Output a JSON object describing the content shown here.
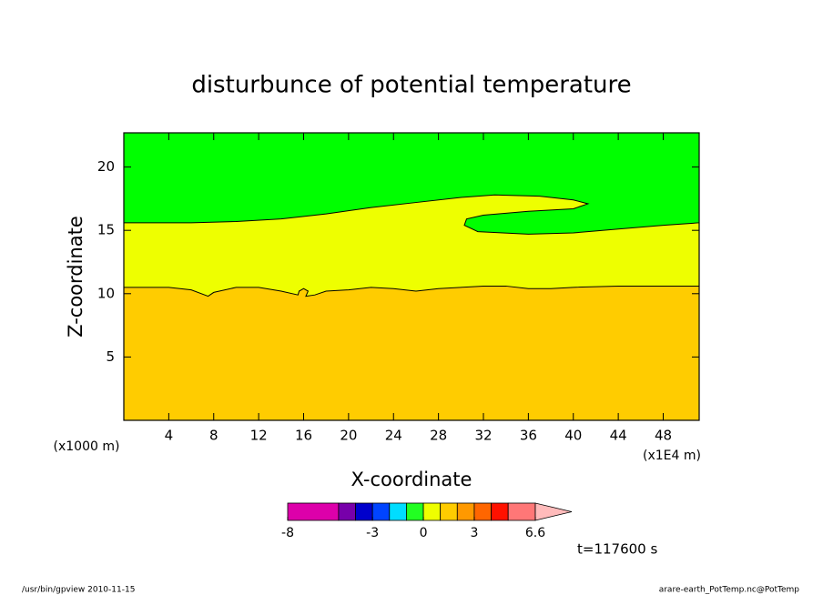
{
  "chart_data": {
    "type": "contour",
    "title": "disturbunce of potential temperature",
    "x_label": "X-coordinate",
    "y_label": "Z-coordinate",
    "x_unit_label": "(x1E4 m)",
    "y_unit_label": "(x1000 m)",
    "xlim": [
      0,
      51.2
    ],
    "ylim": [
      0,
      22.7
    ],
    "xticks": [
      4,
      8,
      12,
      16,
      20,
      24,
      28,
      32,
      36,
      40,
      44,
      48
    ],
    "yticks": [
      5,
      10,
      15,
      20
    ],
    "regions": [
      {
        "color": "#eeff00",
        "x": [
          0,
          51.2,
          51.2,
          0
        ],
        "y": [
          0,
          0,
          22.7,
          22.7
        ]
      },
      {
        "color": "#ffcc00",
        "x": [
          0,
          0,
          4,
          6,
          7.5,
          8,
          10,
          12,
          14,
          15.5,
          15.6,
          16,
          16.4,
          16.2,
          17,
          18,
          20,
          22,
          24,
          26,
          28,
          30,
          32,
          34,
          36,
          38,
          40,
          44,
          48,
          51.2,
          51.2
        ],
        "y": [
          0,
          10.5,
          10.5,
          10.3,
          9.8,
          10.1,
          10.5,
          10.5,
          10.2,
          9.9,
          10.2,
          10.4,
          10.2,
          9.8,
          9.9,
          10.2,
          10.3,
          10.5,
          10.4,
          10.2,
          10.4,
          10.5,
          10.6,
          10.6,
          10.4,
          10.4,
          10.5,
          10.6,
          10.6,
          10.6,
          0
        ]
      },
      {
        "color": "#00ff00",
        "x": [
          0,
          0,
          6,
          10,
          14,
          18,
          22,
          26,
          30,
          33,
          37,
          40,
          41.3,
          40,
          36,
          32,
          30.5,
          30.3,
          31.5,
          36,
          40,
          44,
          48,
          51.2,
          51.2
        ],
        "y": [
          22.7,
          15.6,
          15.6,
          15.7,
          15.9,
          16.3,
          16.8,
          17.2,
          17.6,
          17.8,
          17.7,
          17.4,
          17.1,
          16.7,
          16.5,
          16.2,
          15.9,
          15.4,
          14.9,
          14.7,
          14.8,
          15.1,
          15.4,
          15.6,
          22.7
        ]
      }
    ],
    "colorbar": {
      "levels": [
        -8,
        -5,
        -4,
        -3,
        -2,
        -1,
        0,
        1,
        2,
        3,
        4,
        5,
        6.6
      ],
      "colors": [
        "#dd00aa",
        "#7700aa",
        "#0000cc",
        "#0044ff",
        "#00ddff",
        "#22ff22",
        "#eeff00",
        "#ffcc00",
        "#ff9900",
        "#ff6600",
        "#ff1100",
        "#ff7777"
      ],
      "extension_color": "#ffbbbb",
      "ticks": [
        -8,
        -3,
        0,
        3,
        6.6
      ]
    },
    "time_label": "t=117600 s",
    "footer_left": "/usr/bin/gpview   2010-11-15",
    "footer_right": "arare-earth_PotTemp.nc@PotTemp"
  }
}
